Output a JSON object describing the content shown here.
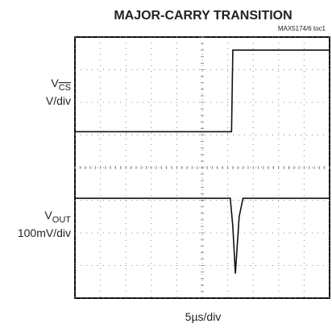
{
  "chart_data": {
    "type": "line",
    "title": "MAJOR-CARRY TRANSITION",
    "note": "MAX5174/6 toc1",
    "x_label": "5µs/div",
    "trace_labels": [
      {
        "symbol": "V",
        "subscript": "CS",
        "scale": "V/div"
      },
      {
        "symbol": "V",
        "subscript": "OUT",
        "scale": "100mV/div"
      }
    ],
    "xlim": [
      0,
      10
    ],
    "ylim": [
      0,
      8
    ],
    "xticks": [
      0,
      1,
      2,
      3,
      4,
      5,
      6,
      7,
      8,
      9,
      10
    ],
    "yticks": [
      0,
      1,
      2,
      3,
      4,
      5,
      6,
      7,
      8
    ],
    "grid": true,
    "series": [
      {
        "color": "#111111",
        "x": [
          0,
          6.15,
          6.2,
          10
        ],
        "values": [
          5.1,
          5.1,
          7.6,
          7.6
        ]
      },
      {
        "color": "#111111",
        "x": [
          0,
          6.1,
          6.2,
          6.3,
          6.45,
          6.6,
          10
        ],
        "values": [
          3.06,
          3.06,
          2.2,
          0.75,
          2.5,
          3.06,
          3.06
        ]
      }
    ]
  }
}
